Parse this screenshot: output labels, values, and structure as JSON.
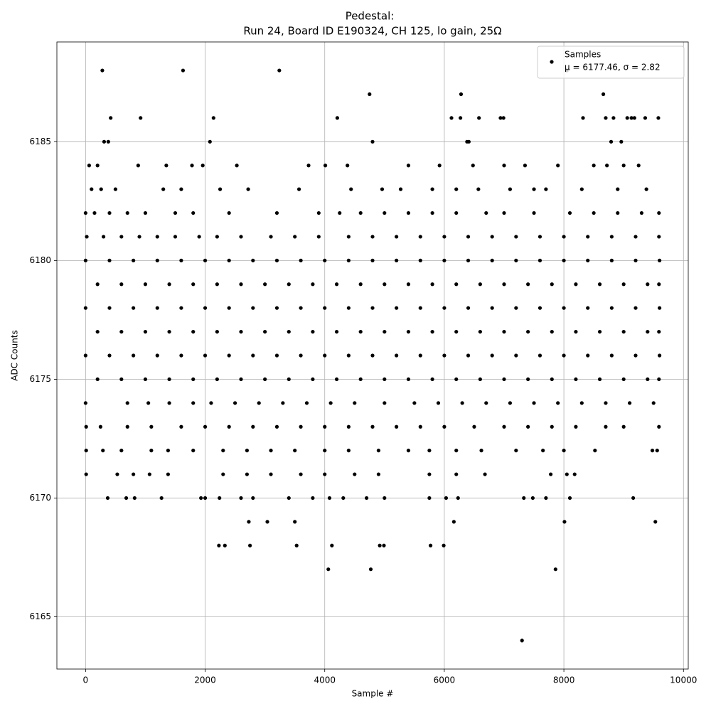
{
  "chart_data": {
    "type": "scatter",
    "title": "Pedestal:",
    "subtitle": "Run 24, Board ID E190324, CH 125, lo gain, 25Ω",
    "xlabel": "Sample #",
    "ylabel": "ADC Counts",
    "xlim": [
      -480,
      10080
    ],
    "ylim": [
      6162.8,
      6189.2
    ],
    "xticks": [
      0,
      2000,
      4000,
      6000,
      8000,
      10000
    ],
    "yticks": [
      6165,
      6170,
      6175,
      6180,
      6185
    ],
    "grid": true,
    "legend": "upper right",
    "annotation": "μ = 6177.46, σ = 2.82",
    "series": [
      {
        "name": "Samples",
        "color": "#000000",
        "x": [
          280,
          1630,
          3240,
          8050,
          4750,
          6280,
          8660,
          420,
          920,
          2140,
          4210,
          6120,
          6270,
          6580,
          6940,
          6990,
          8320,
          8700,
          8830,
          9060,
          9130,
          9180,
          9360,
          9580,
          310,
          380,
          2080,
          4800,
          6380,
          6410,
          8790,
          8960,
          60,
          200,
          880,
          1350,
          1780,
          1960,
          2530,
          3730,
          4010,
          4380,
          5400,
          5920,
          6480,
          7000,
          7350,
          7900,
          8500,
          8720,
          9000,
          9250,
          100,
          260,
          500,
          1300,
          1600,
          2250,
          2720,
          3570,
          4440,
          4960,
          5270,
          5800,
          6200,
          6570,
          7100,
          7500,
          7700,
          8300,
          8900,
          9380,
          0,
          150,
          400,
          700,
          1000,
          1500,
          1800,
          2400,
          3200,
          3900,
          4250,
          4600,
          5000,
          5400,
          5800,
          6200,
          6700,
          7000,
          7500,
          8100,
          8500,
          8900,
          9300,
          9590,
          20,
          300,
          600,
          900,
          1200,
          1500,
          1900,
          2200,
          2600,
          3100,
          3500,
          3900,
          4400,
          4800,
          5200,
          5600,
          6000,
          6400,
          6800,
          7200,
          7600,
          8000,
          8400,
          8800,
          9200,
          9590,
          0,
          400,
          800,
          1200,
          1600,
          2000,
          2400,
          2800,
          3200,
          3600,
          4000,
          4400,
          4800,
          5200,
          5600,
          6000,
          6400,
          6800,
          7200,
          7600,
          8000,
          8400,
          8800,
          9200,
          9600,
          200,
          600,
          1000,
          1400,
          1800,
          2200,
          2600,
          3000,
          3400,
          3800,
          4200,
          4600,
          5000,
          5400,
          5800,
          6200,
          6600,
          7000,
          7400,
          7800,
          8200,
          8600,
          9000,
          9400,
          9590,
          0,
          400,
          800,
          1200,
          1600,
          2000,
          2400,
          2800,
          3200,
          3600,
          4000,
          4400,
          4800,
          5200,
          5600,
          6000,
          6400,
          6800,
          7200,
          7600,
          8000,
          8400,
          8800,
          9200,
          9600,
          200,
          600,
          1000,
          1400,
          1800,
          2200,
          2600,
          3000,
          3400,
          3800,
          4200,
          4600,
          5000,
          5400,
          5800,
          6200,
          6600,
          7000,
          7400,
          7800,
          8200,
          8600,
          9000,
          9400,
          9590,
          0,
          400,
          800,
          1200,
          1600,
          2000,
          2400,
          2800,
          3200,
          3600,
          4000,
          4400,
          4800,
          5200,
          5600,
          6000,
          6400,
          6800,
          7200,
          7600,
          8000,
          8400,
          8800,
          9200,
          9600,
          200,
          600,
          1000,
          1400,
          1800,
          2200,
          2600,
          3000,
          3400,
          3800,
          4200,
          4600,
          5000,
          5400,
          5800,
          6200,
          6600,
          7000,
          7400,
          7800,
          8200,
          8600,
          9000,
          9400,
          9590,
          0,
          700,
          1050,
          1400,
          1800,
          2100,
          2500,
          2900,
          3300,
          3700,
          4100,
          4500,
          5000,
          5500,
          5900,
          6300,
          6700,
          7100,
          7500,
          7900,
          8300,
          8700,
          9100,
          9500,
          10,
          250,
          700,
          1100,
          1600,
          2000,
          2400,
          2800,
          3200,
          3600,
          4000,
          4400,
          4800,
          5200,
          5600,
          6000,
          6500,
          7000,
          7400,
          7800,
          8200,
          8700,
          9000,
          9590,
          10,
          290,
          600,
          1100,
          1380,
          1800,
          2300,
          2700,
          3100,
          3500,
          4000,
          4400,
          4900,
          5400,
          5750,
          6200,
          6620,
          7200,
          7650,
          8000,
          8520,
          9480,
          9560,
          10,
          530,
          800,
          1070,
          1380,
          2300,
          2700,
          3100,
          3600,
          4000,
          4500,
          4900,
          5750,
          6200,
          6680,
          7780,
          8050,
          8180,
          370,
          680,
          820,
          1270,
          1930,
          2000,
          2240,
          2600,
          2800,
          3400,
          3800,
          4080,
          4310,
          4700,
          5000,
          5750,
          6030,
          6230,
          7330,
          7480,
          7700,
          8100,
          9160,
          2730,
          3040,
          3500,
          6160,
          8010,
          9530,
          2230,
          2330,
          2750,
          3530,
          4120,
          4920,
          4990,
          5770,
          5990,
          4060,
          4770,
          7860,
          7300
        ],
        "values": [
          6188,
          6188,
          6188,
          6188,
          6187,
          6187,
          6187,
          6186,
          6186,
          6186,
          6186,
          6186,
          6186,
          6186,
          6186,
          6186,
          6186,
          6186,
          6186,
          6186,
          6186,
          6186,
          6186,
          6186,
          6185,
          6185,
          6185,
          6185,
          6185,
          6185,
          6185,
          6185,
          6184,
          6184,
          6184,
          6184,
          6184,
          6184,
          6184,
          6184,
          6184,
          6184,
          6184,
          6184,
          6184,
          6184,
          6184,
          6184,
          6184,
          6184,
          6184,
          6184,
          6183,
          6183,
          6183,
          6183,
          6183,
          6183,
          6183,
          6183,
          6183,
          6183,
          6183,
          6183,
          6183,
          6183,
          6183,
          6183,
          6183,
          6183,
          6183,
          6183,
          6182,
          6182,
          6182,
          6182,
          6182,
          6182,
          6182,
          6182,
          6182,
          6182,
          6182,
          6182,
          6182,
          6182,
          6182,
          6182,
          6182,
          6182,
          6182,
          6182,
          6182,
          6182,
          6182,
          6182,
          6181,
          6181,
          6181,
          6181,
          6181,
          6181,
          6181,
          6181,
          6181,
          6181,
          6181,
          6181,
          6181,
          6181,
          6181,
          6181,
          6181,
          6181,
          6181,
          6181,
          6181,
          6181,
          6181,
          6181,
          6181,
          6181,
          6180,
          6180,
          6180,
          6180,
          6180,
          6180,
          6180,
          6180,
          6180,
          6180,
          6180,
          6180,
          6180,
          6180,
          6180,
          6180,
          6180,
          6180,
          6180,
          6180,
          6180,
          6180,
          6180,
          6180,
          6180,
          6179,
          6179,
          6179,
          6179,
          6179,
          6179,
          6179,
          6179,
          6179,
          6179,
          6179,
          6179,
          6179,
          6179,
          6179,
          6179,
          6179,
          6179,
          6179,
          6179,
          6179,
          6179,
          6179,
          6179,
          6179,
          6178,
          6178,
          6178,
          6178,
          6178,
          6178,
          6178,
          6178,
          6178,
          6178,
          6178,
          6178,
          6178,
          6178,
          6178,
          6178,
          6178,
          6178,
          6178,
          6178,
          6178,
          6178,
          6178,
          6178,
          6178,
          6177,
          6177,
          6177,
          6177,
          6177,
          6177,
          6177,
          6177,
          6177,
          6177,
          6177,
          6177,
          6177,
          6177,
          6177,
          6177,
          6177,
          6177,
          6177,
          6177,
          6177,
          6177,
          6177,
          6177,
          6177,
          6176,
          6176,
          6176,
          6176,
          6176,
          6176,
          6176,
          6176,
          6176,
          6176,
          6176,
          6176,
          6176,
          6176,
          6176,
          6176,
          6176,
          6176,
          6176,
          6176,
          6176,
          6176,
          6176,
          6176,
          6176,
          6175,
          6175,
          6175,
          6175,
          6175,
          6175,
          6175,
          6175,
          6175,
          6175,
          6175,
          6175,
          6175,
          6175,
          6175,
          6175,
          6175,
          6175,
          6175,
          6175,
          6175,
          6175,
          6175,
          6175,
          6175,
          6174,
          6174,
          6174,
          6174,
          6174,
          6174,
          6174,
          6174,
          6174,
          6174,
          6174,
          6174,
          6174,
          6174,
          6174,
          6174,
          6174,
          6174,
          6174,
          6174,
          6174,
          6174,
          6174,
          6174,
          6173,
          6173,
          6173,
          6173,
          6173,
          6173,
          6173,
          6173,
          6173,
          6173,
          6173,
          6173,
          6173,
          6173,
          6173,
          6173,
          6173,
          6173,
          6173,
          6173,
          6173,
          6173,
          6173,
          6173,
          6172,
          6172,
          6172,
          6172,
          6172,
          6172,
          6172,
          6172,
          6172,
          6172,
          6172,
          6172,
          6172,
          6172,
          6172,
          6172,
          6172,
          6172,
          6172,
          6172,
          6172,
          6172,
          6172,
          6171,
          6171,
          6171,
          6171,
          6171,
          6171,
          6171,
          6171,
          6171,
          6171,
          6171,
          6171,
          6171,
          6171,
          6171,
          6171,
          6171,
          6171,
          6170,
          6170,
          6170,
          6170,
          6170,
          6170,
          6170,
          6170,
          6170,
          6170,
          6170,
          6170,
          6170,
          6170,
          6170,
          6170,
          6170,
          6170,
          6170,
          6170,
          6170,
          6170,
          6170,
          6169,
          6169,
          6169,
          6169,
          6169,
          6169,
          6168,
          6168,
          6168,
          6168,
          6168,
          6168,
          6168,
          6168,
          6168,
          6167,
          6167,
          6167,
          6164
        ]
      }
    ]
  }
}
